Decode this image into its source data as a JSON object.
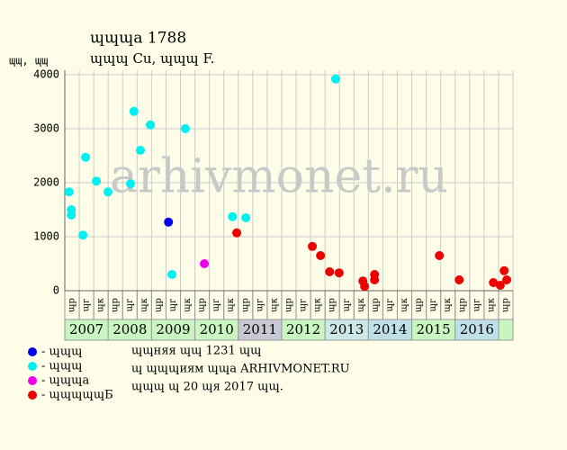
{
  "chart_data": {
    "type": "scatter",
    "title": "ɰɰɰa 1788",
    "subtitle": "ɰɰɰ Cu, ɰɰɰ F.",
    "y_label": "ɰɰ, ɰɰ",
    "watermark": "arhivmonet.ru",
    "xlim": [
      2007,
      2017.375
    ],
    "ylim": [
      0,
      4000
    ],
    "yticks": [
      0,
      1000,
      2000,
      3000,
      4000
    ],
    "grid": true,
    "years": [
      "2007",
      "2008",
      "2009",
      "2010",
      "2011",
      "2012",
      "2013",
      "2014",
      "2015",
      "2016"
    ],
    "year_colors": [
      "#c8f5c0",
      "#c8f5c0",
      "#c8f5c0",
      "#c8f5c0",
      "#c8c8d2",
      "#c8f5c0",
      "#cde6e6",
      "#c0e0e8",
      "#c8f5c0",
      "#c0e0e8"
    ],
    "column_labels": [
      "ɰр",
      "ɰг",
      "ɰк",
      "ɰр",
      "ɰг",
      "ɰк",
      "ɰр",
      "ɰг",
      "ɰк",
      "ɰр",
      "ɰг",
      "ɰк",
      "ɰр",
      "ɰг",
      "ɰк",
      "ɰр",
      "ɰг",
      "ɰк",
      "ɰр",
      "ɰг",
      "ɰк",
      "ɰр",
      "ɰг",
      "ɰк",
      "ɰр",
      "ɰг",
      "ɰк",
      "ɰр",
      "ɰг",
      "ɰк",
      "ɰр"
    ],
    "series": [
      {
        "name": "- ɰɰɰ",
        "color": "#0000ee",
        "x": [
          2009.4
        ],
        "values": [
          1270
        ]
      },
      {
        "name": "- ɰɰɰ",
        "color": "#00f0f0",
        "x": [
          2007.1,
          2007.15,
          2007.15,
          2007.42,
          2007.48,
          2007.73,
          2008.0,
          2008.52,
          2008.6,
          2008.75,
          2008.98,
          2009.48,
          2009.79,
          2010.88,
          2011.19,
          2013.27
        ],
        "values": [
          1830,
          1500,
          1400,
          1030,
          2470,
          2030,
          1830,
          1980,
          3320,
          2600,
          3070,
          300,
          3000,
          1370,
          1350,
          3920
        ]
      },
      {
        "name": "- ɰɰɰa",
        "color": "#ee00ee",
        "x": [
          2010.23
        ],
        "values": [
          500
        ]
      },
      {
        "name": "- ɰɰɰɰɰБ",
        "color": "#ee0000",
        "x": [
          2010.98,
          2012.73,
          2012.92,
          2013.13,
          2013.35,
          2013.9,
          2013.94,
          2014.17,
          2014.17,
          2015.67,
          2016.13,
          2016.92,
          2017.08,
          2017.17,
          2017.23
        ],
        "values": [
          1070,
          820,
          650,
          350,
          330,
          180,
          80,
          300,
          200,
          650,
          200,
          150,
          100,
          370,
          200
        ]
      }
    ],
    "notes": [
      "ɰɰняя ɰɰ 1231 ɰɰ",
      "ɰ ɰɰɰиям ɰɰa ARHIVMONET.RU",
      "ɰɰɰ ɰ 20 ɰя 2017 ɰɰ."
    ]
  }
}
